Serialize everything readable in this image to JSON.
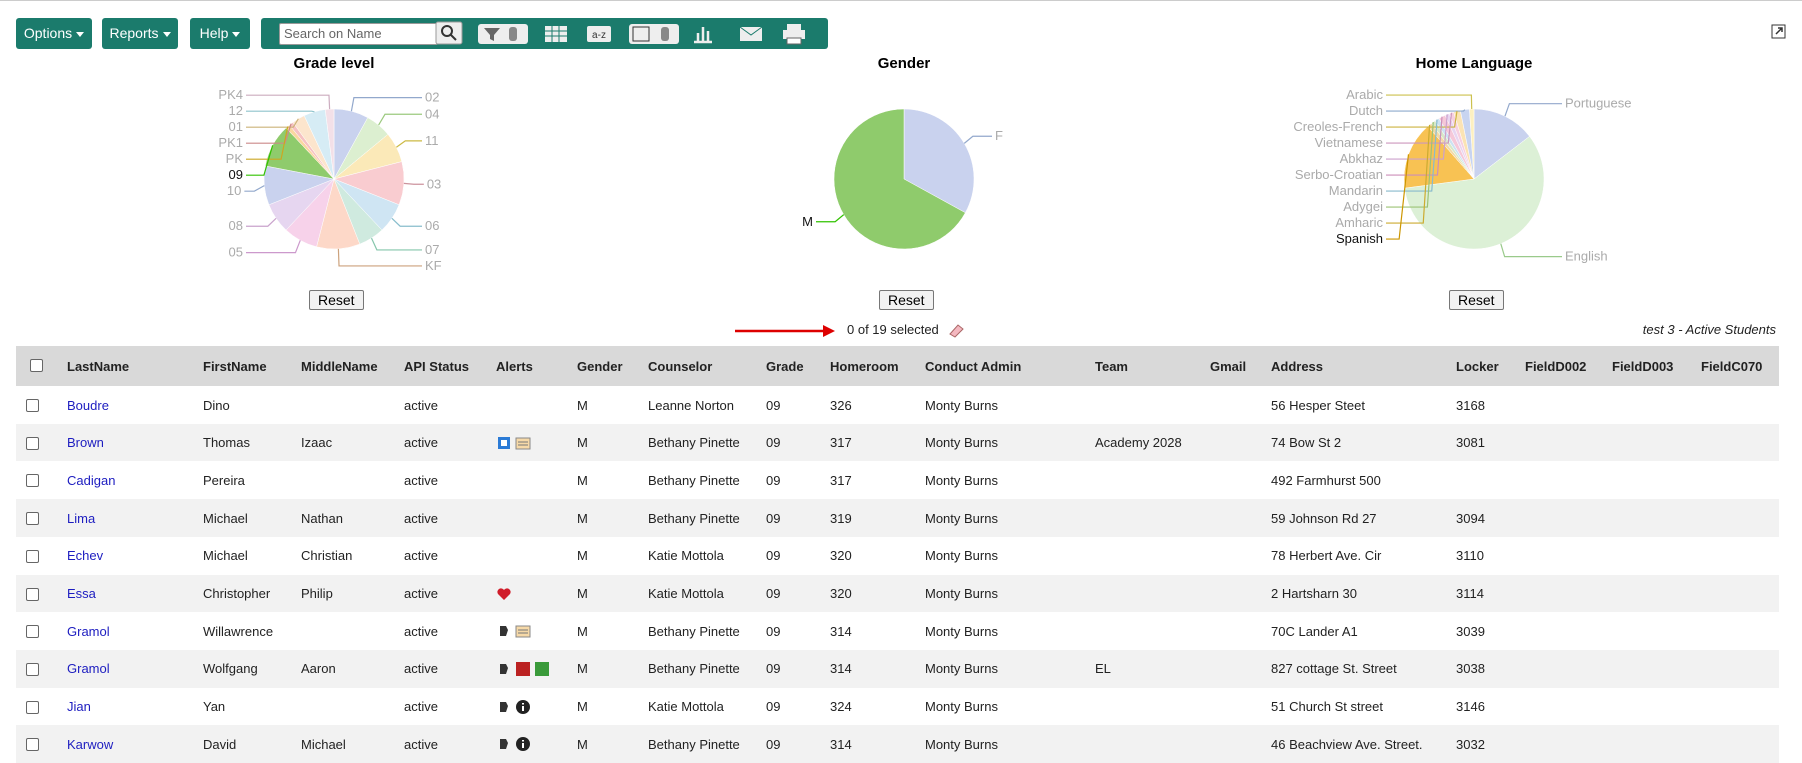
{
  "toolbar": {
    "buttons": [
      "Options",
      "Reports",
      "Help"
    ],
    "search_placeholder": "Search on Name"
  },
  "chart_data": [
    {
      "type": "pie",
      "title": "Grade level",
      "reset": "Reset",
      "selected_index": 10,
      "categories": [
        "02",
        "04",
        "11",
        "03",
        "06",
        "07",
        "KF",
        "05",
        "08",
        "10",
        "09",
        "PK",
        "PK1",
        "01",
        "12",
        "PK4"
      ],
      "values": [
        8,
        6,
        7,
        10,
        7,
        6,
        10,
        8,
        7,
        9,
        10,
        1,
        1,
        3,
        5,
        2
      ],
      "colors": [
        "#c9d2ee",
        "#dcefd0",
        "#fbe9b8",
        "#f9ccd0",
        "#cfe5f3",
        "#cfeadf",
        "#fdd8c8",
        "#f7d2ea",
        "#e6d6f0",
        "#c9d2ee",
        "#8fcb6c",
        "#fad7a0",
        "#f6c2c2",
        "#fce5cd",
        "#d6ecf5",
        "#f3e0e8"
      ]
    },
    {
      "type": "pie",
      "title": "Gender",
      "reset": "Reset",
      "selected_index": 1,
      "categories": [
        "F",
        "M"
      ],
      "values": [
        33,
        67
      ],
      "colors": [
        "#c9d2ee",
        "#8fcb6c"
      ]
    },
    {
      "type": "pie",
      "title": "Home Language",
      "reset": "Reset",
      "selected_index": 2,
      "categories": [
        "Portuguese",
        "English",
        "Spanish",
        "Amharic",
        "Adygei",
        "Mandarin",
        "Serbo-Croatian",
        "Abkhaz",
        "Vietnamese",
        "Creoles-French",
        "Dutch",
        "Arabic"
      ],
      "values": [
        14,
        56,
        15,
        1,
        1,
        1,
        1.5,
        1,
        1,
        1.5,
        2,
        1
      ],
      "colors": [
        "#c9d2ee",
        "#dcf0d6",
        "#f8c253",
        "#f3d9a6",
        "#d8e8c8",
        "#cde2f2",
        "#f5c8d9",
        "#e8d5f0",
        "#f7d0e0",
        "#fbe3b4",
        "#c8d4f0",
        "#fdf0c0"
      ]
    }
  ],
  "selection": {
    "count_text": "0 of 19 selected",
    "list_title": "test 3 - Active Students"
  },
  "table": {
    "columns": [
      "LastName",
      "FirstName",
      "MiddleName",
      "API Status",
      "Alerts",
      "Gender",
      "Counselor",
      "Grade",
      "Homeroom",
      "Conduct Admin",
      "Team",
      "Gmail",
      "Address",
      "Locker",
      "FieldD002",
      "FieldD003",
      "FieldC070"
    ],
    "rows": [
      [
        "Boudre",
        "Dino",
        null,
        "active",
        null,
        "M",
        "Leanne Norton",
        "09",
        "326",
        "Monty Burns",
        null,
        null,
        "56 Hesper Steet",
        "3168",
        null,
        null,
        null
      ],
      [
        "Brown",
        "Thomas",
        "Izaac",
        "active",
        null,
        "M",
        "Bethany Pinette",
        "09",
        "317",
        "Monty Burns",
        "Academy 2028",
        null,
        "74 Bow St 2",
        "3081",
        null,
        null,
        null
      ],
      [
        "Cadigan",
        "Pereira",
        null,
        "active",
        null,
        "M",
        "Bethany Pinette",
        "09",
        "317",
        "Monty Burns",
        null,
        null,
        "492 Farmhurst 500",
        null,
        null,
        null,
        null
      ],
      [
        "Lima",
        "Michael",
        "Nathan",
        "active",
        null,
        "M",
        "Bethany Pinette",
        "09",
        "319",
        "Monty Burns",
        null,
        null,
        "59 Johnson Rd 27",
        "3094",
        null,
        null,
        null
      ],
      [
        "Echev",
        "Michael",
        "Christian",
        "active",
        null,
        "M",
        "Katie  Mottola",
        "09",
        "320",
        "Monty Burns",
        null,
        null,
        "78 Herbert Ave. Cir",
        "3110",
        null,
        null,
        null
      ],
      [
        "Essa",
        "Christopher",
        "Philip",
        "active",
        null,
        "M",
        "Katie  Mottola",
        "09",
        "320",
        "Monty Burns",
        null,
        null,
        "2 Hartsharn 30",
        "3114",
        null,
        null,
        null
      ],
      [
        "Gramol",
        "Willawrence",
        null,
        "active",
        null,
        "M",
        "Bethany Pinette",
        "09",
        "314",
        "Monty Burns",
        null,
        null,
        "70C Lander A1",
        "3039",
        null,
        null,
        null
      ],
      [
        "Gramol",
        "Wolfgang",
        "Aaron",
        "active",
        null,
        "M",
        "Bethany Pinette",
        "09",
        "314",
        "Monty Burns",
        "EL",
        null,
        "827 cottage St. Street",
        "3038",
        null,
        null,
        null
      ],
      [
        "Jian",
        "Yan",
        null,
        "active",
        null,
        "M",
        "Katie  Mottola",
        "09",
        "324",
        "Monty Burns",
        null,
        null,
        "51 Church St street",
        "3146",
        null,
        null,
        null
      ],
      [
        "Karwow",
        "David",
        "Michael",
        "active",
        null,
        "M",
        "Bethany Pinette",
        "09",
        "314",
        "Monty Burns",
        null,
        null,
        "46 Beachview Ave. Street.",
        "3032",
        null,
        null,
        null
      ]
    ]
  }
}
